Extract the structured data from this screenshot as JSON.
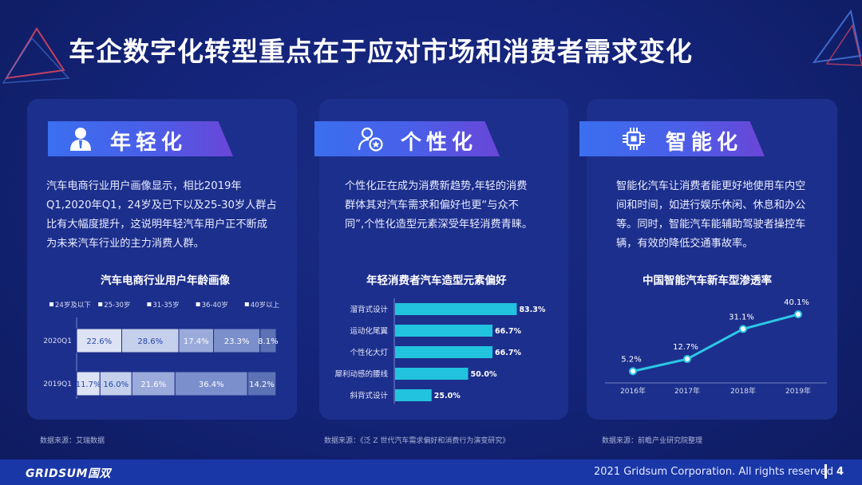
{
  "title": "车企数字化转型重点在于应对市场和消费者需求变化",
  "colors": {
    "background": "#14247a",
    "card": "#1d2f8c",
    "accent": "#22c3de",
    "footer": "#1a37a8"
  },
  "columns": [
    {
      "icon": "user-icon",
      "heading": "年轻化",
      "description": [
        "汽车电商行业用户画像显示，相比2019年",
        "Q1,2020年Q1，24岁及已下以及25-30岁人群占",
        "比有大幅度提升，这说明年轻汽车用户正不断成",
        "为未来汽车行业的主力消费人群。"
      ],
      "chart_title": "汽车电商行业用户年龄画像",
      "source": "数据来源：艾瑞数据"
    },
    {
      "icon": "user-star-icon",
      "heading": "个性化",
      "description": [
        "个性化正在成为消费新趋势,年轻的消费",
        "群体其对汽车需求和偏好也更“与众不",
        "同”,个性化造型元素深受年轻消费青睐。"
      ],
      "chart_title": "年轻消费者汽车造型元素偏好",
      "source": "数据来源：《泛 Z 世代汽车需求偏好和消费行为演变研究》"
    },
    {
      "icon": "chip-icon",
      "heading": "智能化",
      "description": [
        "智能化汽车让消费者能更好地使用车内空",
        "间和时间，如进行娱乐休闲、休息和办公",
        "等。同时，智能汽车能辅助驾驶者操控车",
        "辆，有效的降低交通事故率。"
      ],
      "chart_title": "中国智能汽车新车型渗透率",
      "source": "数据来源：前瞻产业研究院整理"
    }
  ],
  "chart_data": [
    {
      "type": "bar",
      "orientation": "horizontal-stacked",
      "categories": [
        "2020Q1",
        "2019Q1"
      ],
      "series": [
        {
          "name": "24岁及以下",
          "values": [
            22.6,
            11.7
          ],
          "labels": [
            "22.6%",
            "11.7%"
          ],
          "color": "#dde3f4"
        },
        {
          "name": "25-30岁",
          "values": [
            28.6,
            16.0
          ],
          "labels": [
            "28.6%",
            "16.0%"
          ],
          "color": "#c5d0ec"
        },
        {
          "name": "31-35岁",
          "values": [
            17.4,
            21.6
          ],
          "labels": [
            "17.4%",
            "21.6%"
          ],
          "color": "#9aabdb"
        },
        {
          "name": "36-40岁",
          "values": [
            23.3,
            36.4
          ],
          "labels": [
            "23.3%",
            "36.4%"
          ],
          "color": "#7a8fcb"
        },
        {
          "name": "40岁以上",
          "values": [
            8.1,
            14.2
          ],
          "labels": [
            "8.1%",
            "14.2%"
          ],
          "color": "#5d72b5"
        }
      ],
      "xlim": [
        0,
        100
      ],
      "legend": "top"
    },
    {
      "type": "bar",
      "orientation": "horizontal",
      "categories": [
        "溜背式设计",
        "运动化尾翼",
        "个性化大灯",
        "犀利动感的腰线",
        "斜背式设计"
      ],
      "values": [
        83.3,
        66.7,
        66.7,
        50.0,
        25.0
      ],
      "labels": [
        "83.3%",
        "66.7%",
        "66.7%",
        "50.0%",
        "25.0%"
      ],
      "color": "#22c3de",
      "xlim": [
        0,
        100
      ]
    },
    {
      "type": "line",
      "x": [
        "2016年",
        "2017年",
        "2018年",
        "2019年"
      ],
      "values": [
        5.2,
        12.7,
        31.1,
        40.1
      ],
      "labels": [
        "5.2%",
        "12.7%",
        "31.1%",
        "40.1%"
      ],
      "color": "#2bc7e6",
      "ylim": [
        0,
        45
      ]
    }
  ],
  "footer": {
    "logo": "GRIDSUM国双",
    "copyright": "2021 Gridsum Corporation. All rights reserved",
    "page": "4"
  }
}
